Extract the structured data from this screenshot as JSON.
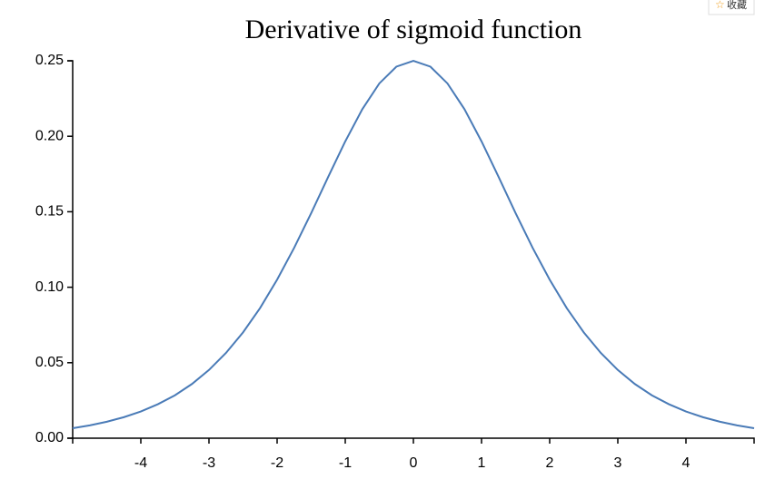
{
  "chart_data": {
    "type": "line",
    "title": "Derivative of sigmoid function",
    "x": [
      -5,
      -4.75,
      -4.5,
      -4.25,
      -4,
      -3.75,
      -3.5,
      -3.25,
      -3,
      -2.75,
      -2.5,
      -2.25,
      -2,
      -1.75,
      -1.5,
      -1.25,
      -1,
      -0.75,
      -0.5,
      -0.25,
      0,
      0.25,
      0.5,
      0.75,
      1,
      1.25,
      1.5,
      1.75,
      2,
      2.25,
      2.5,
      2.75,
      3,
      3.25,
      3.5,
      3.75,
      4,
      4.25,
      4.5,
      4.75,
      5
    ],
    "series": [
      {
        "color": "#4a7bb7",
        "values": [
          0.0066,
          0.0085,
          0.0109,
          0.0139,
          0.0177,
          0.0225,
          0.0284,
          0.0359,
          0.0452,
          0.0565,
          0.0701,
          0.0862,
          0.105,
          0.1261,
          0.1491,
          0.1731,
          0.1966,
          0.2179,
          0.235,
          0.2461,
          0.25,
          0.2461,
          0.235,
          0.2179,
          0.1966,
          0.1731,
          0.1491,
          0.1261,
          0.105,
          0.0862,
          0.0701,
          0.0565,
          0.0452,
          0.0359,
          0.0284,
          0.0225,
          0.0177,
          0.0139,
          0.0109,
          0.0085,
          0.0066
        ]
      }
    ],
    "xlim": [
      -5,
      5
    ],
    "xticks": [
      -4,
      -3,
      -2,
      -1,
      0,
      1,
      2,
      3,
      4
    ],
    "ylim": [
      0,
      0.25
    ],
    "yticks": [
      {
        "value": 0,
        "label": "0.00"
      },
      0.05,
      {
        "value": 0.1,
        "label": "0.10"
      },
      0.15,
      {
        "value": 0.2,
        "label": "0.20"
      },
      0.25
    ]
  },
  "bookmark_button": "收藏"
}
